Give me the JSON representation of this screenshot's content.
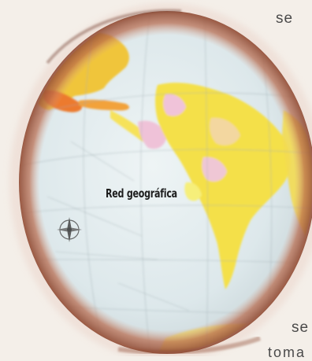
{
  "globe": {
    "label": "Red geográfica"
  },
  "side_text": {
    "top": "se",
    "bottom_1": "se",
    "bottom_2": "toma"
  },
  "colors": {
    "ocean": "#dfe9ec",
    "land_americas": "#f4e24a",
    "land_north": "#f0c53a",
    "land_warm": "#f07a2c",
    "rim": "#a9593a",
    "pink_region": "#eebfd6"
  }
}
